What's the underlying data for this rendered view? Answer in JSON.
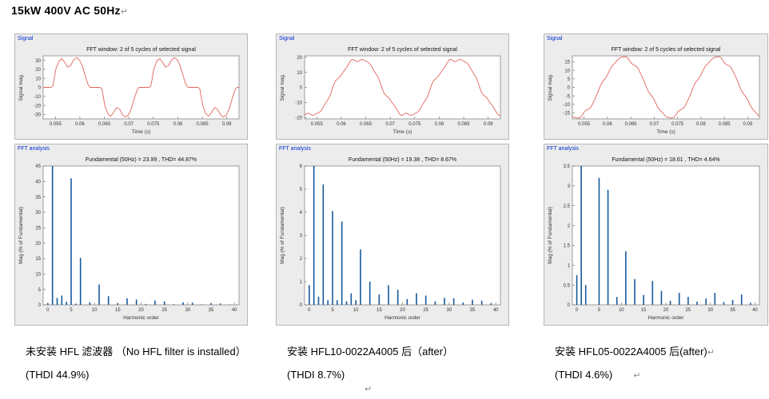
{
  "page": {
    "title": "15kW 400V AC 50Hz",
    "title_mark": "↵",
    "bottom_mark": "↵"
  },
  "colors": {
    "signal_line": "#e0645c",
    "fft_bar": "#155a9c",
    "panel_label_blue": "#0030cc"
  },
  "columns": [
    {
      "signal_label": "Signal",
      "fft_label": "FFT analysis",
      "caption_line1": "未安装 HFL 滤波器 （No HFL filter is installed）",
      "caption_line1_mark": "",
      "caption_line2": "(THDI 44.9%)",
      "caption_line2_mark": ""
    },
    {
      "signal_label": "Signal",
      "fft_label": "FFT analysis",
      "caption_line1": "安装 HFL10-0022A4005 后（after）",
      "caption_line1_mark": "",
      "caption_line2": "(THDI 8.7%)",
      "caption_line2_mark": ""
    },
    {
      "signal_label": "Signal",
      "fft_label": "FFT analysis",
      "caption_line1": "安装 HFL05-0022A4005 后(after)",
      "caption_line1_mark": "↵",
      "caption_line2": "(THDI 4.6%)",
      "caption_line2_mark": "↵"
    }
  ],
  "chart_data": [
    {
      "type": "line",
      "panel": "Signal",
      "title": "FFT window: 2 of 5 cycles of selected signal",
      "xlabel": "Time (s)",
      "ylabel": "Signal mag.",
      "xlim": [
        0.0525,
        0.0925
      ],
      "ylim": [
        -35,
        35
      ],
      "xticks": [
        0.055,
        0.06,
        0.065,
        0.07,
        0.075,
        0.08,
        0.085,
        0.09
      ],
      "yticks": [
        -30,
        -20,
        -10,
        0,
        10,
        20,
        30
      ],
      "color": "#e0645c",
      "waveform": {
        "period": 0.02,
        "t0": 0.0535,
        "amplitude": 33,
        "template": [
          [
            0,
            0
          ],
          [
            0.03,
            0
          ],
          [
            0.05,
            0.05
          ],
          [
            0.08,
            0.62
          ],
          [
            0.11,
            0.88
          ],
          [
            0.14,
            0.97
          ],
          [
            0.17,
            0.84
          ],
          [
            0.2,
            0.68
          ],
          [
            0.23,
            0.73
          ],
          [
            0.26,
            0.92
          ],
          [
            0.29,
            1
          ],
          [
            0.32,
            0.93
          ],
          [
            0.35,
            0.72
          ],
          [
            0.38,
            0.38
          ],
          [
            0.41,
            0.08
          ],
          [
            0.43,
            0
          ],
          [
            0.5,
            0
          ],
          [
            0.53,
            0
          ],
          [
            0.55,
            -0.05
          ],
          [
            0.58,
            -0.62
          ],
          [
            0.61,
            -0.88
          ],
          [
            0.64,
            -0.97
          ],
          [
            0.67,
            -0.84
          ],
          [
            0.7,
            -0.68
          ],
          [
            0.73,
            -0.73
          ],
          [
            0.76,
            -0.92
          ],
          [
            0.79,
            -1
          ],
          [
            0.82,
            -0.93
          ],
          [
            0.85,
            -0.72
          ],
          [
            0.88,
            -0.38
          ],
          [
            0.91,
            -0.08
          ],
          [
            0.93,
            0
          ],
          [
            1,
            0
          ]
        ]
      }
    },
    {
      "type": "bar",
      "panel": "FFT analysis",
      "title": "Fundamental (50Hz) = 23.99 , THD= 44.87%",
      "xlabel": "Harmonic order",
      "ylabel": "Mag (% of Fundamental)",
      "fundamental_hz": 50,
      "fundamental_value": 23.99,
      "thd_percent": 44.87,
      "xlim": [
        -1,
        41
      ],
      "ylim": [
        0,
        45
      ],
      "xticks": [
        0,
        5,
        10,
        15,
        20,
        25,
        30,
        35,
        40
      ],
      "yticks": [
        0,
        5,
        10,
        15,
        20,
        25,
        30,
        35,
        40,
        45
      ],
      "color": "#155a9c",
      "bars": {
        "x": [
          0,
          1,
          2,
          3,
          4,
          5,
          6,
          7,
          9,
          11,
          13,
          15,
          17,
          19,
          21,
          23,
          25,
          27,
          29,
          31,
          33,
          35,
          37,
          39
        ],
        "values": [
          0.5,
          100,
          2.2,
          3,
          1,
          41,
          0.4,
          15.2,
          0.8,
          6.6,
          2.8,
          0.5,
          2.1,
          1.7,
          0.3,
          1.4,
          1.1,
          0.2,
          0.8,
          0.7,
          0.15,
          0.5,
          0.45,
          0.1
        ]
      }
    },
    {
      "type": "line",
      "panel": "Signal",
      "title": "FFT window: 2 of 5 cycles of selected signal",
      "xlabel": "Time (s)",
      "ylabel": "Signal mag.",
      "xlim": [
        0.0525,
        0.0925
      ],
      "ylim": [
        -21,
        21
      ],
      "xticks": [
        0.055,
        0.06,
        0.065,
        0.07,
        0.075,
        0.08,
        0.085,
        0.09
      ],
      "yticks": [
        -20,
        -10,
        0,
        10,
        20
      ],
      "color": "#e0645c",
      "waveform": {
        "period": 0.02,
        "t0": 0.0585,
        "components": [
          {
            "k": 1,
            "a": 19.2,
            "ph": 0
          },
          {
            "k": 3,
            "a": 0.9,
            "ph": 0.8
          },
          {
            "k": 5,
            "a": 0.8,
            "ph": 2
          },
          {
            "k": 7,
            "a": 0.7,
            "ph": 0.5
          },
          {
            "k": 11,
            "a": 0.45,
            "ph": 1.2
          }
        ]
      }
    },
    {
      "type": "bar",
      "panel": "FFT analysis",
      "title": "Fundamental (50Hz) = 19.38 , THD= 8.67%",
      "xlabel": "Harmonic order",
      "ylabel": "Mag (% of Fundamental)",
      "fundamental_hz": 50,
      "fundamental_value": 19.38,
      "thd_percent": 8.67,
      "xlim": [
        -1,
        41
      ],
      "ylim": [
        0,
        6
      ],
      "xticks": [
        0,
        5,
        10,
        15,
        20,
        25,
        30,
        35,
        40
      ],
      "yticks": [
        0,
        1,
        2,
        3,
        4,
        5,
        6
      ],
      "color": "#155a9c",
      "bars": {
        "x": [
          0,
          1,
          2,
          3,
          4,
          5,
          6,
          7,
          8,
          9,
          10,
          11,
          13,
          15,
          17,
          19,
          21,
          23,
          25,
          27,
          29,
          31,
          33,
          35,
          37,
          39
        ],
        "values": [
          0.85,
          100,
          0.35,
          5.2,
          0.2,
          4.05,
          0.2,
          3.6,
          0.15,
          0.5,
          0.2,
          2.4,
          1,
          0.45,
          0.85,
          0.65,
          0.25,
          0.5,
          0.4,
          0.15,
          0.3,
          0.28,
          0.1,
          0.22,
          0.18,
          0.08
        ]
      }
    },
    {
      "type": "line",
      "panel": "Signal",
      "title": "FFT window: 2 of 5 cycles of selected signal",
      "xlabel": "Time (s)",
      "ylabel": "Signal mag.",
      "xlim": [
        0.0525,
        0.0925
      ],
      "ylim": [
        -18.5,
        18.5
      ],
      "xticks": [
        0.055,
        0.06,
        0.065,
        0.07,
        0.075,
        0.08,
        0.085,
        0.09
      ],
      "yticks": [
        -15,
        -10,
        -5,
        0,
        5,
        10,
        15
      ],
      "color": "#e0645c",
      "waveform": {
        "period": 0.02,
        "t0": 0.0585,
        "components": [
          {
            "k": 1,
            "a": 17.6,
            "ph": 0
          },
          {
            "k": 5,
            "a": 0.55,
            "ph": 1
          },
          {
            "k": 7,
            "a": 0.5,
            "ph": 2.2
          },
          {
            "k": 11,
            "a": 0.25,
            "ph": 0.3
          }
        ]
      }
    },
    {
      "type": "bar",
      "panel": "FFT analysis",
      "title": "Fundamental (50Hz) = 18.61 , THD= 4.64%",
      "xlabel": "Harmonic order",
      "ylabel": "Mag (% of Fundamental)",
      "fundamental_hz": 50,
      "fundamental_value": 18.61,
      "thd_percent": 4.64,
      "xlim": [
        -1,
        41
      ],
      "ylim": [
        0,
        3.5
      ],
      "xticks": [
        0,
        5,
        10,
        15,
        20,
        25,
        30,
        35,
        40
      ],
      "yticks": [
        0,
        0.5,
        1,
        1.5,
        2,
        2.5,
        3,
        3.5
      ],
      "color": "#155a9c",
      "bars": {
        "x": [
          0,
          1,
          2,
          5,
          7,
          9,
          11,
          13,
          15,
          17,
          19,
          21,
          23,
          25,
          27,
          29,
          31,
          33,
          35,
          37,
          39
        ],
        "values": [
          0.75,
          100,
          0.5,
          3.2,
          2.9,
          0.2,
          1.35,
          0.65,
          0.25,
          0.6,
          0.35,
          0.1,
          0.3,
          0.2,
          0.08,
          0.16,
          0.3,
          0.07,
          0.12,
          0.26,
          0.05
        ]
      }
    }
  ]
}
